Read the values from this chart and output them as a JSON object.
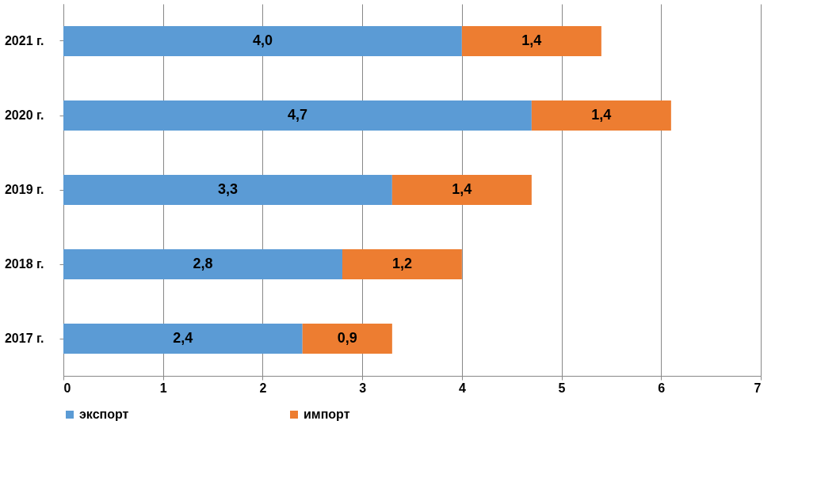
{
  "chart_data": {
    "type": "bar",
    "orientation": "horizontal",
    "stacked": true,
    "categories": [
      "2021 г.",
      "2020 г.",
      "2019 г.",
      "2018 г.",
      "2017 г."
    ],
    "series": [
      {
        "name": "экспорт",
        "color": "#5b9bd5",
        "values": [
          4.0,
          4.7,
          3.3,
          2.8,
          2.4
        ],
        "value_labels": [
          "4,0",
          "4,7",
          "3,3",
          "2,8",
          "2,4"
        ]
      },
      {
        "name": "импорт",
        "color": "#ed7d31",
        "values": [
          1.4,
          1.4,
          1.4,
          1.2,
          0.9
        ],
        "value_labels": [
          "1,4",
          "1,4",
          "1,4",
          "1,2",
          "0,9"
        ]
      }
    ],
    "xlim": [
      0,
      7
    ],
    "xticks": [
      0,
      1,
      2,
      3,
      4,
      5,
      6,
      7
    ],
    "grid": "x",
    "legend": "bottom"
  }
}
